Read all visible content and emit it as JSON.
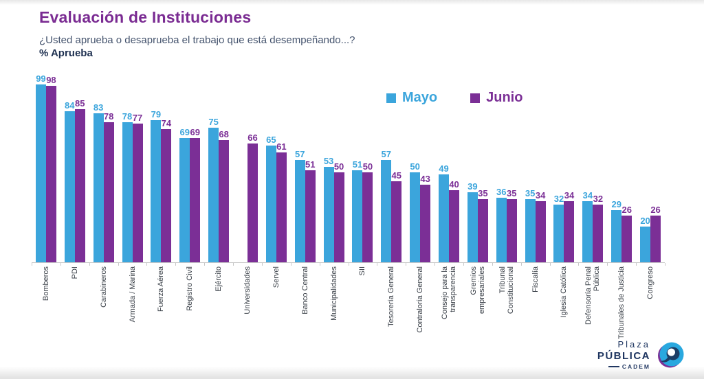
{
  "slide": {
    "title": "Evaluación de Instituciones",
    "subtitle": "¿Usted aprueba o desaprueba el trabajo que está desempeñando...?",
    "metric_label": "% Aprueba"
  },
  "colors": {
    "mayo": "#3ba5dc",
    "junio": "#7b2f96",
    "title": "#7a2b92",
    "axis": "#c8c8c8",
    "category_label": "#3b4149"
  },
  "logo": {
    "plaza": "Plaza",
    "publica": "PÚBLICA",
    "cadem": "CADEM"
  },
  "chart_data": {
    "type": "bar",
    "title": "Evaluación de Instituciones",
    "subtitle": "¿Usted aprueba o desaprueba el trabajo que está desempeñando...?",
    "ylabel": "% Aprueba",
    "ylim": [
      0,
      100
    ],
    "grid": false,
    "legend_position": "top-center",
    "value_labels": true,
    "categories": [
      "Bomberos",
      "PDI",
      "Carabineros",
      "Armada / Marina",
      "Fuerza Aérea",
      "Registro Civil",
      "Ejército",
      "Universidades",
      "Servel",
      "Banco Central",
      "Municipalidades",
      "SII",
      "Tesorería General",
      "Contraloría General",
      "Consejo para la transparencia",
      "Gremios empresariales",
      "Tribunal Constitucional",
      "Fiscalía",
      "Iglesia Católica",
      "Defensoría Penal Pública",
      "Tribunales de Justicia",
      "Congreso"
    ],
    "series": [
      {
        "name": "Mayo",
        "color": "#3ba5dc",
        "values": [
          99,
          84,
          83,
          78,
          79,
          69,
          75,
          null,
          65,
          57,
          53,
          51,
          57,
          50,
          49,
          39,
          36,
          35,
          32,
          34,
          29,
          20
        ]
      },
      {
        "name": "Junio",
        "color": "#7b2f96",
        "values": [
          98,
          85,
          78,
          77,
          74,
          69,
          68,
          66,
          61,
          51,
          50,
          50,
          45,
          43,
          40,
          35,
          35,
          34,
          34,
          32,
          26,
          26
        ]
      }
    ]
  }
}
